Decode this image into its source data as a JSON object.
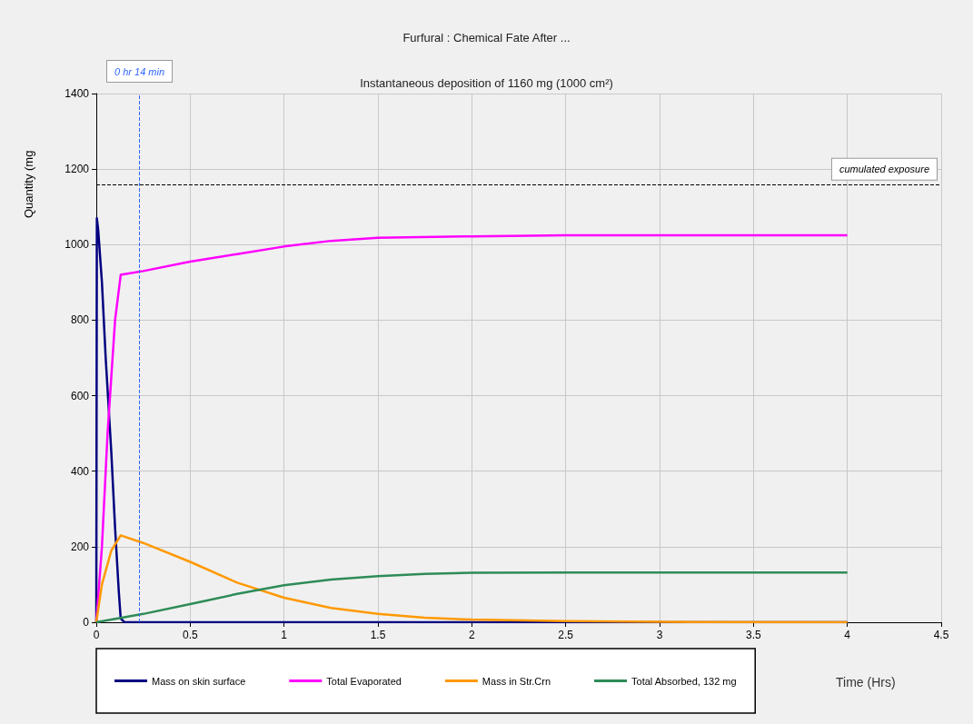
{
  "chart_data": {
    "type": "line",
    "title": "Furfural : Chemical Fate After ...",
    "subtitle": "Instantaneous deposition of 1160 mg (1000 cm²)",
    "xlabel": "Time (Hrs)",
    "ylabel": "Quantity (mg",
    "xlim": [
      0,
      4.5
    ],
    "xticks": [
      0,
      0.5,
      1,
      1.5,
      2,
      2.5,
      3,
      3.5,
      4,
      4.5
    ],
    "ylim": [
      0,
      1400
    ],
    "yticks": [
      0,
      200,
      400,
      600,
      800,
      1000,
      1200,
      1400
    ],
    "grid": true,
    "legend": "bottom",
    "marker": "none",
    "line_style": "solid",
    "series": [
      {
        "name": "Mass on skin surface",
        "color": "#000080",
        "x": [
          0,
          0.003,
          0.01,
          0.03,
          0.05,
          0.08,
          0.1,
          0.12,
          0.13,
          0.15,
          1,
          2,
          3,
          4
        ],
        "values": [
          0,
          1070,
          1040,
          900,
          700,
          450,
          250,
          80,
          10,
          0,
          0,
          0,
          0,
          0
        ]
      },
      {
        "name": "Total Evaporated",
        "color": "#ff00ff",
        "x": [
          0,
          0.03,
          0.06,
          0.1,
          0.13,
          0.25,
          0.5,
          0.75,
          1,
          1.25,
          1.5,
          2,
          2.5,
          3,
          4
        ],
        "values": [
          0,
          200,
          500,
          800,
          920,
          930,
          955,
          975,
          995,
          1010,
          1018,
          1022,
          1025,
          1025,
          1025
        ]
      },
      {
        "name": "Mass in Str.Crn",
        "color": "#ff9900",
        "x": [
          0,
          0.03,
          0.08,
          0.13,
          0.25,
          0.5,
          0.75,
          1,
          1.25,
          1.5,
          1.75,
          2,
          2.5,
          3,
          4
        ],
        "values": [
          0,
          100,
          190,
          230,
          210,
          160,
          105,
          65,
          38,
          22,
          12,
          7,
          3,
          1,
          0
        ]
      },
      {
        "name": "Total Absorbed, 132 mg",
        "color": "#2e8b57",
        "x": [
          0,
          0.25,
          0.5,
          0.75,
          1,
          1.25,
          1.5,
          1.75,
          2,
          2.5,
          3,
          4
        ],
        "values": [
          0,
          22,
          48,
          75,
          98,
          113,
          122,
          128,
          131,
          132,
          132,
          132
        ]
      }
    ],
    "ref_lines": [
      {
        "axis": "y",
        "value": 1160,
        "label": "cumulated exposure",
        "color": "#000000",
        "line_style": "dashed"
      },
      {
        "axis": "x",
        "value": 0.233,
        "label": "0 hr 14 min",
        "color": "#3366ff",
        "line_style": "dashed"
      }
    ]
  }
}
